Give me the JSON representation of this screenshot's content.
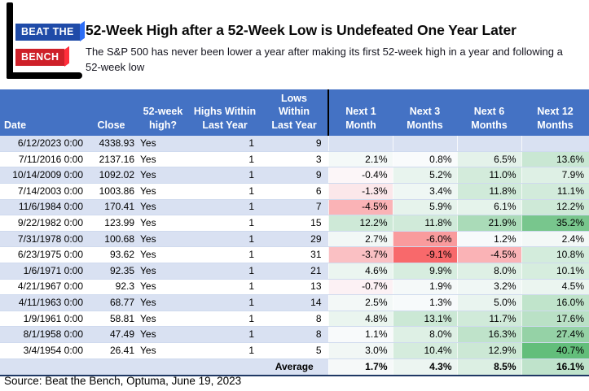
{
  "colors": {
    "header_blue": "#4472C4",
    "stripe_blue": "#D9E1F2",
    "logo_blue": "#1F4BA8",
    "logo_red": "#CE2029",
    "scale_negative": "#F8696B",
    "scale_midpoint": "#FCFCFF",
    "scale_positive": "#63BE7B"
  },
  "logo": {
    "line1": "BEAT THE",
    "line2": "BENCH"
  },
  "header": {
    "title": "52-Week High after a 52-Week Low is Undefeated One Year Later",
    "subtitle": "The S&P 500 has never been lower a year after making its first 52-week high in a year and following a 52-week low"
  },
  "chart_data": {
    "type": "table",
    "title": "52-Week High after a 52-Week Low is Undefeated One Year Later",
    "columns": [
      "Date",
      "Close",
      "52-week\nhigh?",
      "Highs Within\nLast Year",
      "Lows Within\nLast Year",
      "Next 1\nMonth",
      "Next 3\nMonths",
      "Next 6\nMonths",
      "Next 12\nMonths"
    ],
    "rows": [
      {
        "date": "6/12/2023 0:00",
        "close": "4338.93",
        "high": "Yes",
        "highs_within": 1,
        "lows_within": 9,
        "next_pct": [
          null,
          null,
          null,
          null
        ]
      },
      {
        "date": "7/11/2016 0:00",
        "close": "2137.16",
        "high": "Yes",
        "highs_within": 1,
        "lows_within": 3,
        "next_pct": [
          2.1,
          0.8,
          6.5,
          13.6
        ]
      },
      {
        "date": "10/14/2009 0:00",
        "close": "1092.02",
        "high": "Yes",
        "highs_within": 1,
        "lows_within": 9,
        "next_pct": [
          -0.4,
          5.2,
          11.0,
          7.9
        ]
      },
      {
        "date": "7/14/2003 0:00",
        "close": "1003.86",
        "high": "Yes",
        "highs_within": 1,
        "lows_within": 6,
        "next_pct": [
          -1.3,
          3.4,
          11.8,
          11.1
        ]
      },
      {
        "date": "11/6/1984 0:00",
        "close": "170.41",
        "high": "Yes",
        "highs_within": 1,
        "lows_within": 7,
        "next_pct": [
          -4.5,
          5.9,
          6.1,
          12.2
        ]
      },
      {
        "date": "9/22/1982 0:00",
        "close": "123.99",
        "high": "Yes",
        "highs_within": 1,
        "lows_within": 15,
        "next_pct": [
          12.2,
          11.8,
          21.9,
          35.2
        ]
      },
      {
        "date": "7/31/1978 0:00",
        "close": "100.68",
        "high": "Yes",
        "highs_within": 1,
        "lows_within": 29,
        "next_pct": [
          2.7,
          -6.0,
          1.2,
          2.4
        ]
      },
      {
        "date": "6/23/1975 0:00",
        "close": "93.62",
        "high": "Yes",
        "highs_within": 1,
        "lows_within": 31,
        "next_pct": [
          -3.7,
          -9.1,
          -4.5,
          10.8
        ]
      },
      {
        "date": "1/6/1971 0:00",
        "close": "92.35",
        "high": "Yes",
        "highs_within": 1,
        "lows_within": 21,
        "next_pct": [
          4.6,
          9.9,
          8.0,
          10.1
        ]
      },
      {
        "date": "4/21/1967 0:00",
        "close": "92.3",
        "high": "Yes",
        "highs_within": 1,
        "lows_within": 13,
        "next_pct": [
          -0.7,
          1.9,
          3.2,
          4.5
        ]
      },
      {
        "date": "4/11/1963 0:00",
        "close": "68.77",
        "high": "Yes",
        "highs_within": 1,
        "lows_within": 14,
        "next_pct": [
          2.5,
          1.3,
          5.0,
          16.0
        ]
      },
      {
        "date": "1/9/1961 0:00",
        "close": "58.81",
        "high": "Yes",
        "highs_within": 1,
        "lows_within": 8,
        "next_pct": [
          4.8,
          13.1,
          11.7,
          17.6
        ]
      },
      {
        "date": "8/1/1958 0:00",
        "close": "47.49",
        "high": "Yes",
        "highs_within": 1,
        "lows_within": 8,
        "next_pct": [
          1.1,
          8.0,
          16.3,
          27.4
        ]
      },
      {
        "date": "3/4/1954 0:00",
        "close": "26.41",
        "high": "Yes",
        "highs_within": 1,
        "lows_within": 5,
        "next_pct": [
          3.0,
          10.4,
          12.9,
          40.7
        ]
      }
    ],
    "average": {
      "label": "Average",
      "next_pct": [
        1.7,
        4.3,
        8.5,
        16.1
      ]
    },
    "color_scale": {
      "min": -9.1,
      "max": 40.7
    }
  },
  "footer": {
    "source": "Source: Beat the Bench, Optuma, June 19, 2023"
  }
}
